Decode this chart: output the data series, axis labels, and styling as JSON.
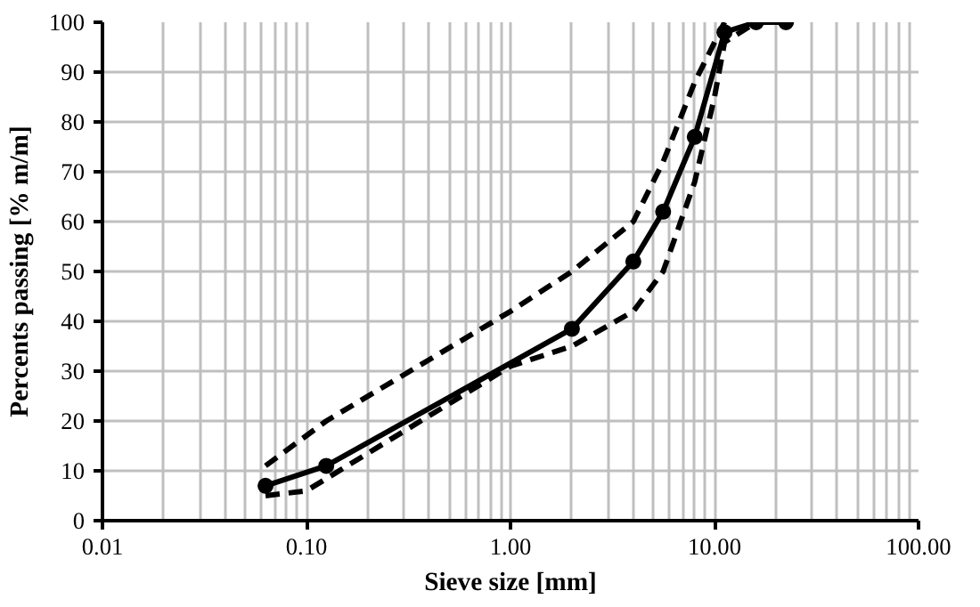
{
  "chart_data": {
    "type": "line",
    "xlabel": "Sieve size [mm]",
    "ylabel": "Percents passing [% m/m]",
    "log": "x",
    "grid": true,
    "xlim": [
      0.01,
      100
    ],
    "ylim": [
      0,
      100
    ],
    "xticks": [
      {
        "value": 0.01,
        "label": "0.01"
      },
      {
        "value": 0.1,
        "label": "0.10"
      },
      {
        "value": 1,
        "label": "1.00"
      },
      {
        "value": 10,
        "label": "10.00"
      },
      {
        "value": 100,
        "label": "100.00"
      }
    ],
    "yticks": [
      0,
      10,
      20,
      30,
      40,
      50,
      60,
      70,
      80,
      90,
      100
    ],
    "series": [
      {
        "color": "#000000",
        "marker": "circle",
        "line_style": "solid",
        "x": [
          0.063,
          0.125,
          2,
          4,
          5.6,
          8,
          11.2,
          16,
          22.4
        ],
        "values": [
          7,
          11,
          38.5,
          52,
          62,
          77,
          98,
          100,
          100
        ]
      },
      {
        "color": "#000000",
        "marker": "none",
        "line_style": "dashed",
        "x": [
          0.063,
          0.125,
          1,
          2,
          4,
          5.6,
          8,
          11.2
        ],
        "values": [
          11,
          20,
          42,
          50,
          60,
          72,
          88,
          100
        ]
      },
      {
        "color": "#000000",
        "marker": "none",
        "line_style": "dashed",
        "x": [
          0.063,
          0.1,
          1,
          2,
          4,
          5.6,
          8,
          10,
          11.2,
          16
        ],
        "values": [
          5,
          6,
          31,
          35,
          42,
          50,
          68,
          85,
          96,
          100
        ]
      }
    ]
  }
}
